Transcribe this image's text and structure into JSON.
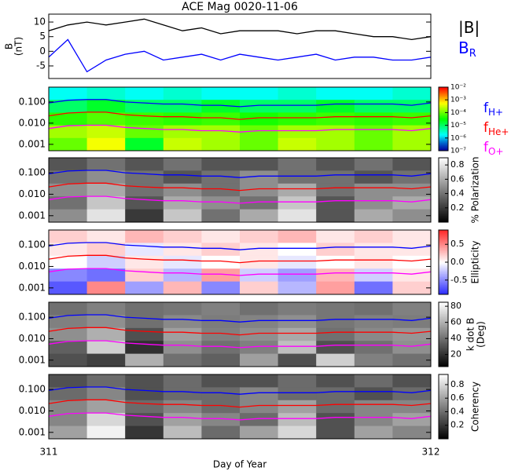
{
  "title": "ACE Mag 0020-11-06",
  "chart_data": [
    {
      "type": "line",
      "ylabel": [
        "B",
        "(nT)"
      ],
      "xlim": [
        311,
        312
      ],
      "ylim": [
        -9.3,
        12.7
      ],
      "yticks": [
        10,
        5,
        0,
        -5
      ],
      "legend": "right",
      "x": [
        311,
        311.05,
        311.1,
        311.15,
        311.2,
        311.25,
        311.3,
        311.35,
        311.4,
        311.45,
        311.5,
        311.55,
        311.6,
        311.65,
        311.7,
        311.75,
        311.8,
        311.85,
        311.9,
        311.95,
        312
      ],
      "series": [
        {
          "name": "|B|",
          "color": "#000000",
          "values": [
            7,
            9,
            10,
            9,
            10,
            11,
            9,
            7,
            8,
            6,
            7,
            7,
            7,
            6,
            7,
            7,
            6,
            5,
            5,
            4,
            5
          ]
        },
        {
          "name": "B",
          "sub": "R",
          "color": "#0000ff",
          "values": [
            -2,
            4,
            -7,
            -3,
            -1,
            0,
            -3,
            -2,
            -1,
            -3,
            -1,
            -2,
            -3,
            -2,
            -1,
            -3,
            -2,
            -2,
            -3,
            -3,
            -2
          ]
        }
      ]
    },
    {
      "type": "spectrogram",
      "colormap": "rainbow",
      "zlog": true,
      "xlim": [
        311,
        312
      ],
      "ylim": [
        0.0005,
        0.5
      ],
      "ylog": true,
      "yticks": [
        {
          "value": 0.1,
          "label": "0.100"
        },
        {
          "value": 0.01,
          "label": "0.010"
        },
        {
          "value": 0.001,
          "label": "0.001"
        }
      ],
      "zlim": [
        1e-07,
        0.01
      ],
      "zticks": [
        {
          "value": 0.01,
          "label": "10⁻²"
        },
        {
          "value": 0.001,
          "label": "10⁻³"
        },
        {
          "value": 0.0001,
          "label": "10⁻⁴"
        },
        {
          "value": 1e-05,
          "label": "10⁻⁵"
        },
        {
          "value": 1e-06,
          "label": "10⁻⁶"
        },
        {
          "value": 1e-07,
          "label": "10⁻⁷"
        }
      ],
      "legend": "right",
      "x": [
        311,
        311.05,
        311.1,
        311.15,
        311.2,
        311.25,
        311.3,
        311.35,
        311.4,
        311.45,
        311.5,
        311.55,
        311.6,
        311.65,
        311.7,
        311.75,
        311.8,
        311.85,
        311.9,
        311.95,
        312
      ],
      "series": [
        {
          "name": "f",
          "sub": "H+",
          "color": "#0000ff",
          "values": [
            0.09,
            0.12,
            0.13,
            0.13,
            0.1,
            0.09,
            0.08,
            0.08,
            0.07,
            0.07,
            0.06,
            0.07,
            0.07,
            0.07,
            0.07,
            0.08,
            0.08,
            0.08,
            0.08,
            0.07,
            0.09
          ]
        },
        {
          "name": "f",
          "sub": "He+",
          "color": "#ff0000",
          "values": [
            0.022,
            0.03,
            0.033,
            0.033,
            0.025,
            0.022,
            0.02,
            0.02,
            0.018,
            0.018,
            0.015,
            0.018,
            0.018,
            0.018,
            0.018,
            0.02,
            0.02,
            0.02,
            0.02,
            0.018,
            0.022
          ]
        },
        {
          "name": "f",
          "sub": "O+",
          "color": "#ff00ff",
          "values": [
            0.0056,
            0.0075,
            0.008,
            0.008,
            0.0063,
            0.0056,
            0.005,
            0.005,
            0.0044,
            0.0044,
            0.0038,
            0.0044,
            0.0044,
            0.0044,
            0.0044,
            0.005,
            0.005,
            0.005,
            0.005,
            0.0044,
            0.0056
          ]
        }
      ],
      "z": [
        [
          2e-06,
          3e-06,
          2e-06,
          3e-06,
          2e-06,
          2e-06,
          3e-06,
          2e-06,
          2e-06,
          3e-06
        ],
        [
          1e-05,
          2e-05,
          1e-05,
          1e-05,
          2e-05,
          1e-05,
          1e-05,
          2e-05,
          1e-05,
          1e-05
        ],
        [
          5e-05,
          8e-05,
          6e-05,
          5e-05,
          6e-05,
          4e-05,
          5e-05,
          6e-05,
          5e-05,
          6e-05
        ],
        [
          0.0002,
          0.0003,
          0.0001,
          0.0002,
          0.0002,
          0.0001,
          0.0002,
          0.0002,
          0.0001,
          0.0002
        ],
        [
          0.0001,
          0.0005,
          2e-05,
          0.0003,
          0.0002,
          0.0001,
          0.0003,
          0.0002,
          0.0001,
          0.0002
        ]
      ]
    },
    {
      "type": "spectrogram",
      "colormap": "gray",
      "xlim": [
        311,
        312
      ],
      "ylim": [
        0.0005,
        0.5
      ],
      "ylog": true,
      "yticks": [
        {
          "value": 0.1,
          "label": "0.100"
        },
        {
          "value": 0.01,
          "label": "0.010"
        },
        {
          "value": 0.001,
          "label": "0.001"
        }
      ],
      "zlim": [
        0,
        0.9
      ],
      "zticks": [
        0.8,
        0.6,
        0.4,
        0.2
      ],
      "zlabel": "% Polarization",
      "z": [
        [
          0.3,
          0.4,
          0.3,
          0.4,
          0.3,
          0.3,
          0.4,
          0.3,
          0.4,
          0.3
        ],
        [
          0.4,
          0.5,
          0.4,
          0.3,
          0.4,
          0.5,
          0.4,
          0.4,
          0.3,
          0.4
        ],
        [
          0.5,
          0.6,
          0.4,
          0.5,
          0.4,
          0.5,
          0.6,
          0.4,
          0.5,
          0.5
        ],
        [
          0.4,
          0.7,
          0.3,
          0.6,
          0.5,
          0.4,
          0.7,
          0.3,
          0.5,
          0.6
        ],
        [
          0.5,
          0.8,
          0.2,
          0.7,
          0.4,
          0.6,
          0.8,
          0.3,
          0.6,
          0.5
        ]
      ]
    },
    {
      "type": "spectrogram",
      "colormap": "bwr",
      "xlim": [
        311,
        312
      ],
      "ylim": [
        0.0005,
        0.5
      ],
      "ylog": true,
      "yticks": [
        {
          "value": 0.1,
          "label": "0.100"
        },
        {
          "value": 0.01,
          "label": "0.010"
        },
        {
          "value": 0.001,
          "label": "0.001"
        }
      ],
      "zlim": [
        -0.9,
        0.9
      ],
      "zticks": [
        0.5,
        {
          "value": 0,
          "label": "0.0"
        },
        -0.5
      ],
      "zlabel": "Ellipticity",
      "z": [
        [
          0.2,
          0.1,
          0.3,
          0.2,
          0.1,
          0.2,
          0.3,
          0.1,
          0.2,
          0.1
        ],
        [
          0.1,
          0.2,
          -0.1,
          0.1,
          0.2,
          0.1,
          0,
          0.2,
          0.1,
          0.1
        ],
        [
          0,
          -0.2,
          0.1,
          -0.1,
          0,
          0.1,
          -0.1,
          0,
          0.1,
          0
        ],
        [
          -0.5,
          -0.6,
          0.2,
          -0.3,
          0.4,
          -0.2,
          -0.4,
          0.3,
          -0.2,
          0.1
        ],
        [
          -0.7,
          0.5,
          -0.4,
          0.3,
          -0.5,
          0.2,
          -0.3,
          0.4,
          -0.6,
          0.2
        ]
      ]
    },
    {
      "type": "spectrogram",
      "colormap": "gray",
      "xlim": [
        311,
        312
      ],
      "ylim": [
        0.0005,
        0.5
      ],
      "ylog": true,
      "yticks": [
        {
          "value": 0.1,
          "label": "0.100"
        },
        {
          "value": 0.01,
          "label": "0.010"
        },
        {
          "value": 0.001,
          "label": "0.001"
        }
      ],
      "zlim": [
        5,
        85
      ],
      "zticks": [
        80,
        60,
        40,
        20
      ],
      "zlabel": [
        "k dot B",
        "(Deg)"
      ],
      "z": [
        [
          40,
          45,
          40,
          42,
          45,
          40,
          44,
          42,
          40,
          45
        ],
        [
          45,
          50,
          40,
          48,
          44,
          46,
          50,
          42,
          45,
          44
        ],
        [
          50,
          60,
          30,
          55,
          45,
          50,
          58,
          40,
          48,
          52
        ],
        [
          35,
          70,
          20,
          50,
          40,
          45,
          65,
          30,
          40,
          50
        ],
        [
          30,
          25,
          60,
          40,
          35,
          55,
          30,
          70,
          45,
          40
        ]
      ]
    },
    {
      "type": "spectrogram",
      "colormap": "gray",
      "xlim": [
        311,
        312
      ],
      "ylim": [
        0.0005,
        0.5
      ],
      "ylog": true,
      "yticks": [
        {
          "value": 0.1,
          "label": "0.100"
        },
        {
          "value": 0.01,
          "label": "0.010"
        },
        {
          "value": 0.001,
          "label": "0.001"
        }
      ],
      "zlim": [
        0,
        0.95
      ],
      "zticks": [
        0.8,
        0.6,
        0.4,
        0.2
      ],
      "zlabel": "Coherency",
      "xticks": [
        311,
        312
      ],
      "xlabel": "Day of Year",
      "z": [
        [
          0.3,
          0.4,
          0.3,
          0.4,
          0.3,
          0.3,
          0.4,
          0.3,
          0.4,
          0.3
        ],
        [
          0.4,
          0.5,
          0.3,
          0.4,
          0.4,
          0.5,
          0.4,
          0.4,
          0.3,
          0.4
        ],
        [
          0.5,
          0.6,
          0.4,
          0.5,
          0.4,
          0.5,
          0.6,
          0.4,
          0.5,
          0.5
        ],
        [
          0.5,
          0.8,
          0.3,
          0.6,
          0.5,
          0.4,
          0.7,
          0.3,
          0.5,
          0.6
        ],
        [
          0.6,
          0.9,
          0.2,
          0.7,
          0.4,
          0.6,
          0.8,
          0.3,
          0.6,
          0.5
        ]
      ]
    }
  ]
}
